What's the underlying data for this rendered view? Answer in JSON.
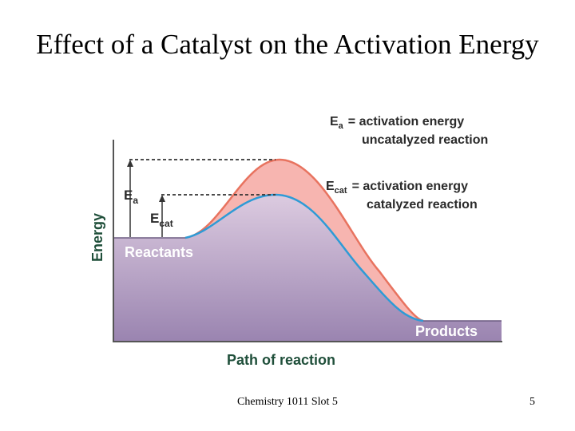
{
  "slide": {
    "title": "Effect of a Catalyst on the Activation Energy",
    "footer": "Chemistry 1011 Slot 5",
    "page_number": "5"
  },
  "diagram": {
    "y_axis_label": "Energy",
    "x_axis_label": "Path of reaction",
    "reactants_label": "Reactants",
    "products_label": "Products",
    "ea_symbol": "E",
    "ea_subscript": "a",
    "ecat_symbol": "E",
    "ecat_subscript": "cat",
    "legend": {
      "ea_symbol": "E",
      "ea_subscript": "a",
      "ea_line1": "= activation energy",
      "ea_line2": "uncatalyzed reaction",
      "ecat_symbol": "E",
      "ecat_subscript": "cat",
      "ecat_line1": "= activation energy",
      "ecat_line2": "catalyzed reaction"
    },
    "colors": {
      "uncatalyzed_curve": "#e8735f",
      "catalyzed_curve": "#2e9bd6",
      "uncatalyzed_fill": "#f7b5b0",
      "label_color": "#2a2a2a",
      "axis_label_color": "#1f4f3a"
    }
  }
}
